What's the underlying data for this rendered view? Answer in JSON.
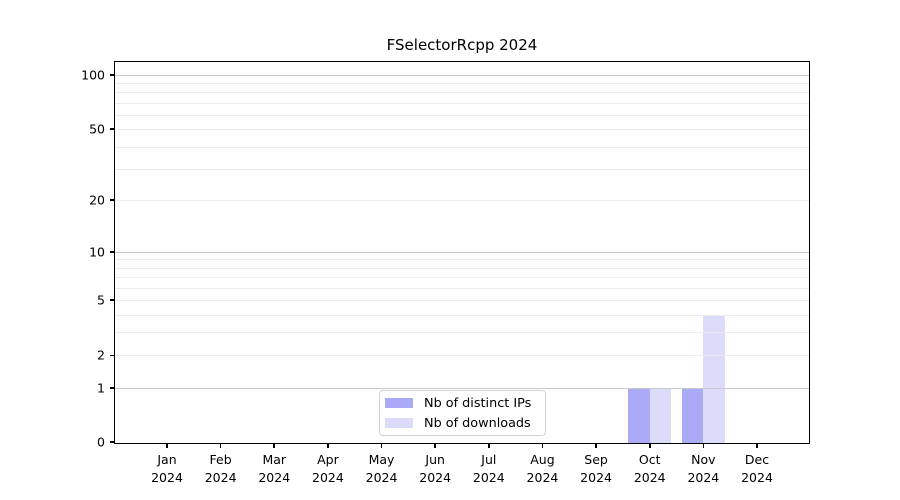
{
  "chart_data": {
    "type": "bar",
    "title": "FSelectorRcpp 2024",
    "categories": [
      "Jan",
      "Feb",
      "Mar",
      "Apr",
      "May",
      "Jun",
      "Jul",
      "Aug",
      "Sep",
      "Oct",
      "Nov",
      "Dec"
    ],
    "category_sublabel": "2024",
    "series": [
      {
        "name": "Nb of distinct IPs",
        "color": "#aaaaf8",
        "values": [
          0,
          0,
          0,
          0,
          0,
          0,
          0,
          0,
          0,
          1,
          1,
          0
        ]
      },
      {
        "name": "Nb of downloads",
        "color": "#dcdcfa",
        "values": [
          0,
          0,
          0,
          0,
          0,
          0,
          0,
          0,
          0,
          1,
          4,
          0
        ]
      }
    ],
    "y_axis": {
      "scale": "log1p",
      "tick_labels": [
        0,
        1,
        2,
        5,
        10,
        20,
        50,
        100
      ],
      "major_gridline_values": [
        1,
        10,
        100
      ],
      "minor_gridline_values": [
        2,
        3,
        4,
        5,
        6,
        7,
        8,
        9,
        20,
        30,
        40,
        50,
        60,
        70,
        80,
        90
      ],
      "range": [
        0,
        117.6
      ]
    },
    "x_axis": {
      "year": "2024",
      "n_months": 12
    },
    "grid": {
      "horizontal": true,
      "major_color": "#c9c9c9",
      "minor_color": "#ececec"
    },
    "legend": {
      "position": "bottom-center",
      "entries": [
        "Nb of distinct IPs",
        "Nb of downloads"
      ]
    },
    "frame_color": "#000000",
    "background": "#ffffff"
  }
}
